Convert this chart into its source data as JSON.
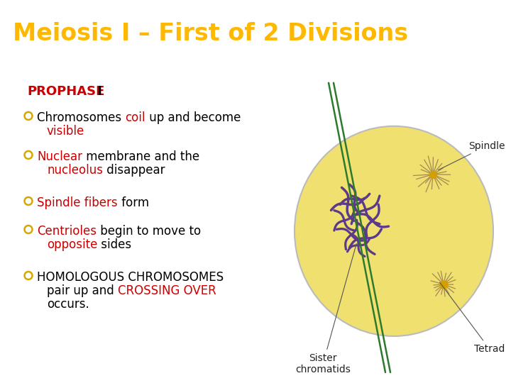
{
  "title": "Meiosis I – First of 2 Divisions",
  "title_color": "#FFB800",
  "title_bg": "#000000",
  "body_bg": "#FFFFFF",
  "section_label_red": "PROPHASE",
  "section_label_black": " I",
  "section_label_red_color": "#CC0000",
  "section_label_black_color": "#000000",
  "bullet_color": "#D4A800",
  "highlight_red": "#CC0000",
  "bullets": [
    [
      {
        "text": "Chromosomes ",
        "color": "#000000"
      },
      {
        "text": "coil",
        "color": "#CC0000"
      },
      {
        "text": " up and become",
        "color": "#000000"
      },
      {
        "text": "visible",
        "color": "#CC0000",
        "newline": true
      }
    ],
    [
      {
        "text": "Nuclear",
        "color": "#CC0000"
      },
      {
        "text": " membrane and the",
        "color": "#000000"
      },
      {
        "text": "nucleolus",
        "color": "#CC0000",
        "newline": true
      },
      {
        "text": " disappear",
        "color": "#000000"
      }
    ],
    [
      {
        "text": "Spindle fibers",
        "color": "#CC0000"
      },
      {
        "text": " form",
        "color": "#000000"
      }
    ],
    [
      {
        "text": "Centrioles",
        "color": "#CC0000"
      },
      {
        "text": " begin to move to",
        "color": "#000000"
      },
      {
        "text": "opposite",
        "color": "#CC0000",
        "newline": true
      },
      {
        "text": " sides",
        "color": "#000000"
      }
    ],
    [
      {
        "text": "HOMOLOGOUS CHROMOSOMES",
        "color": "#000000"
      },
      {
        "text": "pair up and ",
        "color": "#000000",
        "newline": true
      },
      {
        "text": "CROSSING OVER",
        "color": "#CC0000"
      },
      {
        "text": "occurs.",
        "color": "#000000",
        "newline2": true
      }
    ]
  ],
  "cell_color": "#F0E070",
  "cell_edge_color": "#BBBBBB",
  "spindle_color": "#2D7A2D",
  "chrom_color": "#5B3A8A",
  "aster_color": "#9B8050",
  "label_color": "#222222",
  "title_fontsize": 24,
  "section_fontsize": 13,
  "bullet_fontsize": 12,
  "diagram_fontsize": 10,
  "fig_width": 7.2,
  "fig_height": 5.4,
  "dpi": 100
}
